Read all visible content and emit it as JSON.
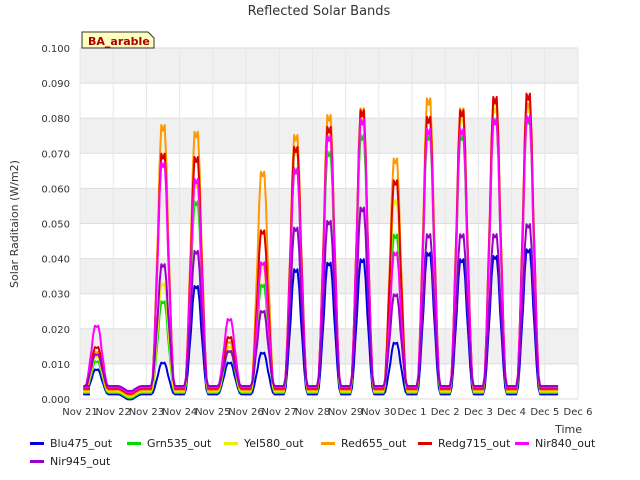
{
  "chart_data": {
    "type": "line",
    "title": "Reflected Solar Bands",
    "ylabel": "Solar Raditaion (W/m2)",
    "xlabel": "Time",
    "ylim": [
      0,
      0.1
    ],
    "yticks": [
      "0.000",
      "0.010",
      "0.020",
      "0.030",
      "0.040",
      "0.050",
      "0.060",
      "0.070",
      "0.080",
      "0.090",
      "0.100"
    ],
    "xlim": [
      0,
      15
    ],
    "xticks": [
      "Nov 21",
      "Nov 22",
      "Nov 23",
      "Nov 24",
      "Nov 25",
      "Nov 26",
      "Nov 27",
      "Nov 28",
      "Nov 29",
      "Nov 30",
      "Dec 1",
      "Dec 2",
      "Dec 3",
      "Dec 4",
      "Dec 5",
      "Dec 6"
    ],
    "grid": true,
    "site_label": "BA_arable",
    "days": [
      0.5,
      1.5,
      2.5,
      3.5,
      4.5,
      5.5,
      6.5,
      7.5,
      8.5,
      9.5,
      10.5,
      11.5,
      12.5,
      13.5
    ],
    "series": [
      {
        "name": "Blu475_out",
        "color": "#0000dd",
        "peaks": [
          0.01,
          0.001,
          0.012,
          0.035,
          0.012,
          0.015,
          0.04,
          0.042,
          0.043,
          0.018,
          0.045,
          0.043,
          0.044,
          0.046
        ]
      },
      {
        "name": "Grn535_out",
        "color": "#00dd00",
        "peaks": [
          0.012,
          0.001,
          0.03,
          0.06,
          0.015,
          0.035,
          0.07,
          0.075,
          0.08,
          0.05,
          0.08,
          0.08,
          0.085,
          0.085
        ]
      },
      {
        "name": "Yel580_out",
        "color": "#eeee00",
        "peaks": [
          0.013,
          0.001,
          0.035,
          0.065,
          0.016,
          0.04,
          0.075,
          0.08,
          0.085,
          0.06,
          0.085,
          0.085,
          0.088,
          0.088
        ]
      },
      {
        "name": "Red655_out",
        "color": "#ff9900",
        "peaks": [
          0.014,
          0.001,
          0.082,
          0.08,
          0.017,
          0.068,
          0.079,
          0.085,
          0.087,
          0.072,
          0.09,
          0.087,
          0.09,
          0.089
        ]
      },
      {
        "name": "Redg715_out",
        "color": "#dd0000",
        "peaks": [
          0.015,
          0.001,
          0.073,
          0.072,
          0.018,
          0.05,
          0.075,
          0.081,
          0.086,
          0.065,
          0.084,
          0.086,
          0.09,
          0.091
        ]
      },
      {
        "name": "Nir840_out",
        "color": "#ff00ff",
        "peaks": [
          0.021,
          0.001,
          0.07,
          0.065,
          0.023,
          0.04,
          0.068,
          0.078,
          0.083,
          0.043,
          0.08,
          0.08,
          0.083,
          0.084
        ]
      },
      {
        "name": "Nir945_out",
        "color": "#9900cc",
        "peaks": [
          0.012,
          0.001,
          0.039,
          0.043,
          0.013,
          0.025,
          0.05,
          0.052,
          0.056,
          0.03,
          0.048,
          0.048,
          0.048,
          0.051
        ]
      }
    ]
  }
}
